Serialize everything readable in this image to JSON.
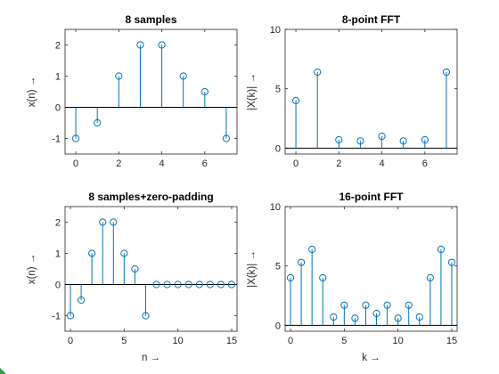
{
  "chart_data": [
    {
      "type": "stem",
      "title": "8 samples",
      "xlabel": "",
      "ylabel": "x(n) →",
      "xlim": [
        -0.5,
        7.5
      ],
      "ylim": [
        -1.5,
        2.5
      ],
      "xticks": [
        0,
        2,
        4,
        6
      ],
      "yticks": [
        -1,
        0,
        1,
        2
      ],
      "x": [
        0,
        1,
        2,
        3,
        4,
        5,
        6,
        7
      ],
      "y": [
        -1,
        -0.5,
        1,
        2,
        2,
        1,
        0.5,
        -1
      ]
    },
    {
      "type": "stem",
      "title": "8-point FFT",
      "xlabel": "",
      "ylabel": "|X(k)| →",
      "xlim": [
        -0.5,
        7.5
      ],
      "ylim": [
        -0.5,
        10
      ],
      "xticks": [
        0,
        2,
        4,
        6
      ],
      "yticks": [
        0,
        5,
        10
      ],
      "x": [
        0,
        1,
        2,
        3,
        4,
        5,
        6,
        7
      ],
      "y": [
        4.0,
        6.4,
        0.7,
        0.6,
        1.0,
        0.6,
        0.7,
        6.4
      ]
    },
    {
      "type": "stem",
      "title": "8 samples+zero-padding",
      "xlabel": "n →",
      "ylabel": "x(n) →",
      "xlim": [
        -0.5,
        15.5
      ],
      "ylim": [
        -1.5,
        2.5
      ],
      "xticks": [
        0,
        5,
        10,
        15
      ],
      "yticks": [
        -1,
        0,
        1,
        2
      ],
      "x": [
        0,
        1,
        2,
        3,
        4,
        5,
        6,
        7,
        8,
        9,
        10,
        11,
        12,
        13,
        14,
        15
      ],
      "y": [
        -1,
        -0.5,
        1,
        2,
        2,
        1,
        0.5,
        -1,
        0,
        0,
        0,
        0,
        0,
        0,
        0,
        0
      ]
    },
    {
      "type": "stem",
      "title": "16-point FFT",
      "xlabel": "k →",
      "ylabel": "|X(k)| →",
      "xlim": [
        -0.5,
        15.5
      ],
      "ylim": [
        -0.5,
        10
      ],
      "xticks": [
        0,
        5,
        10,
        15
      ],
      "yticks": [
        0,
        5,
        10
      ],
      "x": [
        0,
        1,
        2,
        3,
        4,
        5,
        6,
        7,
        8,
        9,
        10,
        11,
        12,
        13,
        14,
        15
      ],
      "y": [
        4.0,
        5.3,
        6.4,
        4.0,
        0.7,
        1.7,
        0.6,
        1.7,
        1.0,
        1.7,
        0.6,
        1.7,
        0.7,
        4.0,
        6.4,
        5.3
      ]
    }
  ],
  "colors": {
    "stem": "#0072BD",
    "axis": "#262626",
    "baseline": "#000000",
    "background": "#ffffff",
    "corner_mark": "#3a9a4a"
  }
}
